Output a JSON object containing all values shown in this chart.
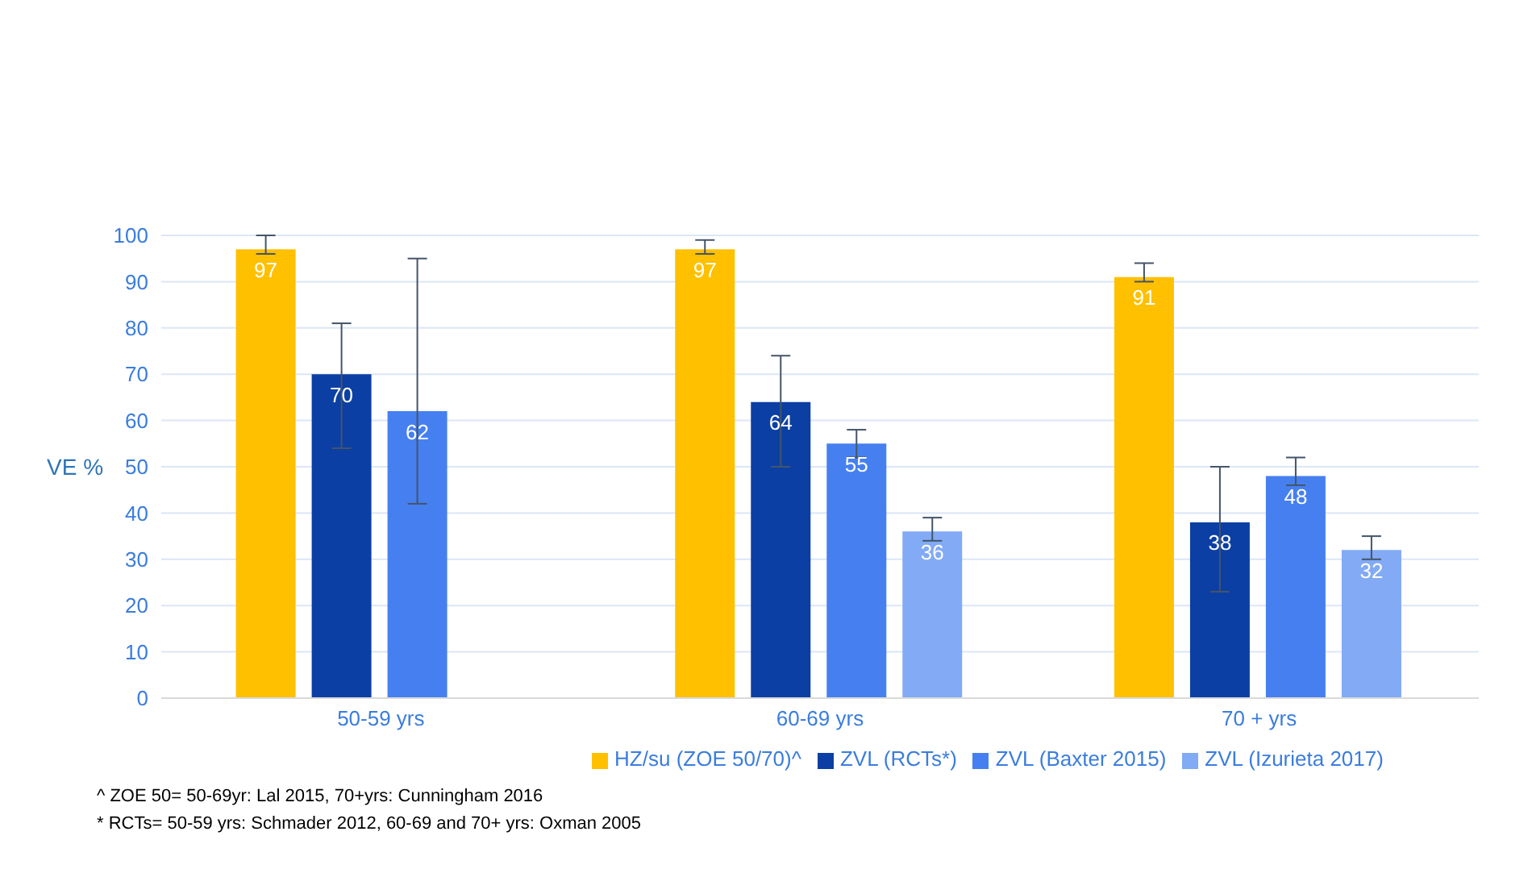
{
  "chart_data": {
    "type": "bar",
    "ylabel": "VE %",
    "categories": [
      "50-59 yrs",
      "60-69 yrs",
      "70 + yrs"
    ],
    "series": [
      {
        "name": "HZ/su (ZOE 50/70)^",
        "color": "#ffc000",
        "values": [
          97,
          97,
          91
        ],
        "errors": [
          [
            96,
            100
          ],
          [
            96,
            99
          ],
          [
            90,
            94
          ]
        ]
      },
      {
        "name": "ZVL (RCTs*)",
        "color": "#0b3fa3",
        "values": [
          70,
          64,
          38
        ],
        "errors": [
          [
            54,
            81
          ],
          [
            50,
            74
          ],
          [
            23,
            50
          ]
        ]
      },
      {
        "name": "ZVL (Baxter 2015)",
        "color": "#4680f0",
        "values": [
          62,
          55,
          48
        ],
        "errors": [
          [
            42,
            95
          ],
          [
            52,
            58
          ],
          [
            46,
            52
          ]
        ]
      },
      {
        "name": "ZVL (Izurieta 2017)",
        "color": "#82aaf5",
        "values": [
          null,
          36,
          32
        ],
        "errors": [
          null,
          [
            34,
            39
          ],
          [
            30,
            35
          ]
        ]
      }
    ],
    "ylim": [
      0,
      100
    ],
    "yticks": [
      0,
      10,
      20,
      30,
      40,
      50,
      60,
      70,
      80,
      90,
      100
    ],
    "grid": "y",
    "legend": "bottom",
    "data_labels": true,
    "annotations": [
      "^ ZOE 50= 50-69yr: Lal 2015, 70+yrs: Cunningham  2016",
      "* RCTs= 50-59 yrs: Schmader 2012, 60-69 and 70+ yrs: Oxman 2005"
    ]
  }
}
